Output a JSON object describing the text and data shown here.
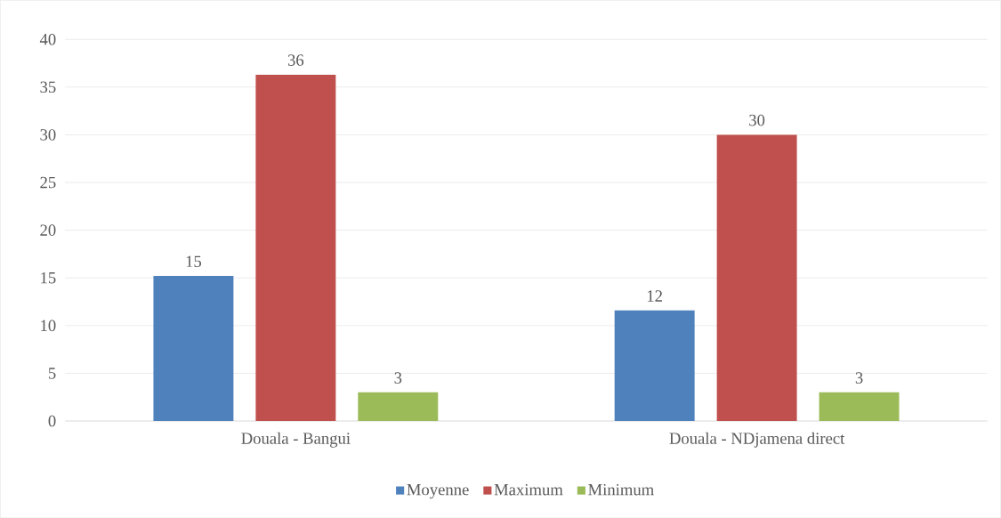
{
  "chart_data": {
    "type": "bar",
    "categories": [
      "Douala - Bangui",
      "Douala - NDjamena direct"
    ],
    "series": [
      {
        "name": "Moyenne",
        "color": "#4f81bd",
        "values": [
          15.2,
          11.6
        ],
        "value_labels": [
          "15",
          "12"
        ]
      },
      {
        "name": "Maximum",
        "color": "#c0504d",
        "values": [
          36.3,
          30
        ],
        "value_labels": [
          "36",
          "30"
        ]
      },
      {
        "name": "Minimum",
        "color": "#9bbb59",
        "values": [
          3,
          3
        ],
        "value_labels": [
          "3",
          "3"
        ]
      }
    ],
    "ylim": [
      0,
      40
    ],
    "yticks": [
      0,
      5,
      10,
      15,
      20,
      25,
      30,
      35,
      40
    ],
    "grid": "y",
    "legend": "bottom"
  }
}
